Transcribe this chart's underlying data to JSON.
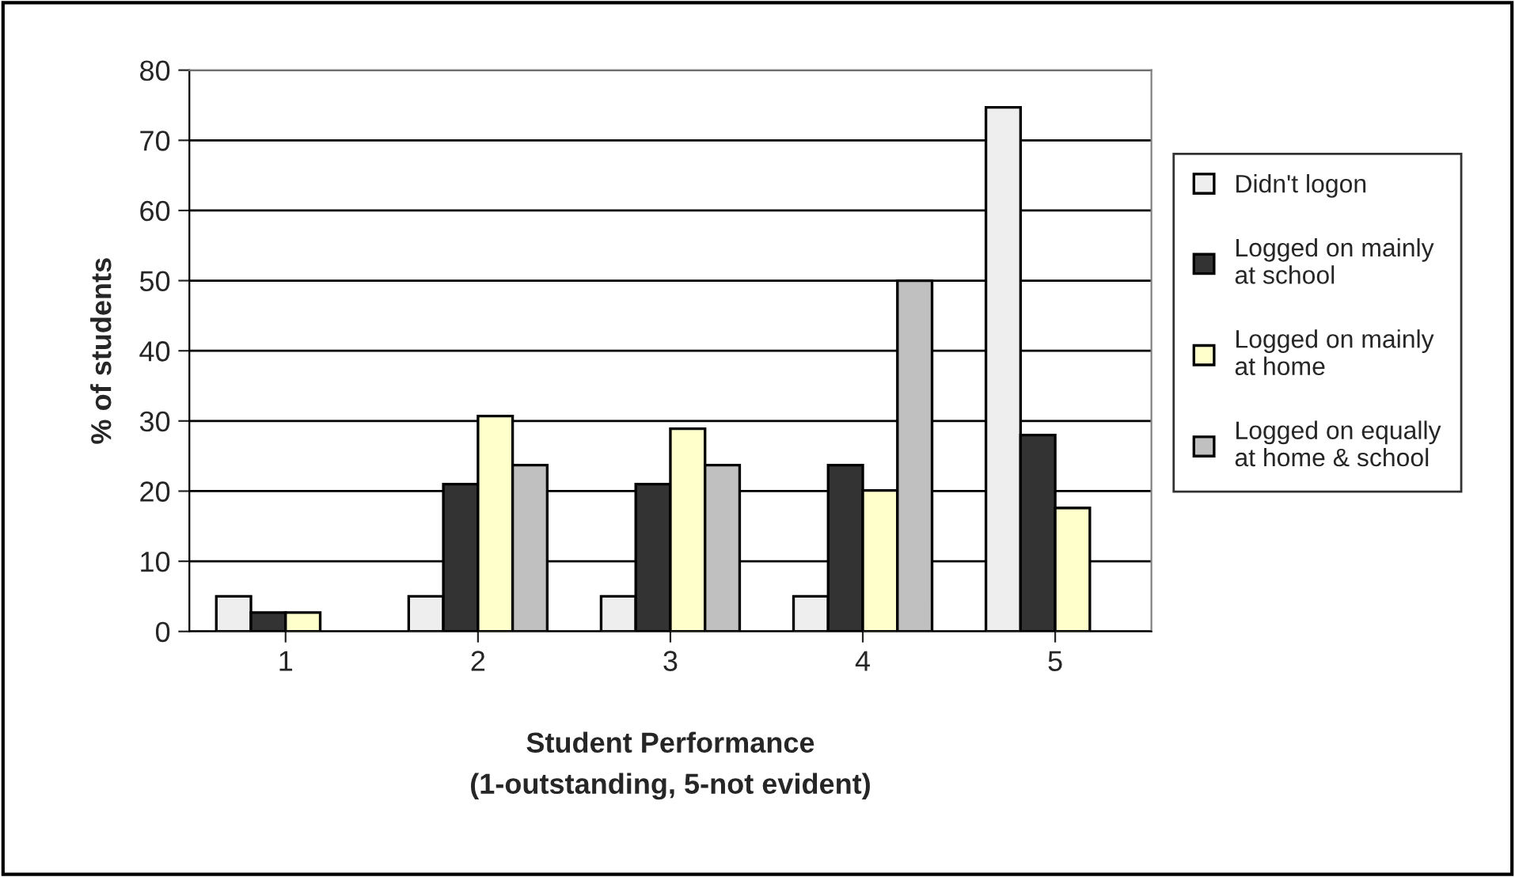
{
  "chart_data": {
    "type": "bar",
    "xlabel": "Student Performance\n(1-outstanding, 5-not evident)",
    "ylabel": "% of students",
    "categories": [
      "1",
      "2",
      "3",
      "4",
      "5"
    ],
    "series": [
      {
        "name": "Didn't logon",
        "color": "#eeeeee",
        "values": [
          5,
          5,
          5,
          5,
          74.7
        ]
      },
      {
        "name": "Logged on mainly\nat school",
        "color": "#333333",
        "values": [
          2.7,
          21,
          21,
          23.7,
          28
        ]
      },
      {
        "name": "Logged on mainly\nat home",
        "color": "#ffffcc",
        "values": [
          2.7,
          30.7,
          28.9,
          20.1,
          17.6
        ]
      },
      {
        "name": "Logged on equally\nat home & school",
        "color": "#c0c0c0",
        "values": [
          null,
          23.7,
          23.7,
          50,
          null
        ]
      }
    ],
    "ylim": [
      0,
      80
    ],
    "yticks": [
      0,
      10,
      20,
      30,
      40,
      50,
      60,
      70,
      80
    ],
    "grid": "y",
    "legend": "right"
  }
}
